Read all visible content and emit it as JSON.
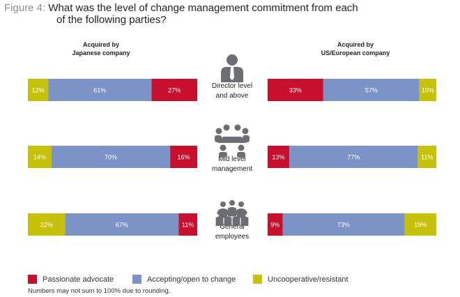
{
  "figure": {
    "label": "Figure 4:",
    "question_line1": "What was the level of change management commitment from each",
    "question_line2": "of the following parties?"
  },
  "columns": {
    "left": {
      "line1": "Acquired by",
      "line2": "Japanese company"
    },
    "right": {
      "line1": "Acquired by",
      "line2": "US/European company"
    }
  },
  "colors": {
    "passionate": "#c8102e",
    "accepting": "#7b93c6",
    "uncooperative": "#c6c20b"
  },
  "chart_data": {
    "type": "bar",
    "stacked": true,
    "orientation": "horizontal",
    "unit": "%",
    "groups": [
      {
        "label_lines": [
          "Director level",
          "and above"
        ],
        "icon": "single-person-icon",
        "japanese": {
          "uncooperative": 12,
          "accepting": 61,
          "passionate": 27
        },
        "us_european": {
          "passionate": 33,
          "accepting": 57,
          "uncooperative": 10
        }
      },
      {
        "label_lines": [
          "Mid level",
          "management"
        ],
        "icon": "meeting-table-icon",
        "japanese": {
          "uncooperative": 14,
          "accepting": 70,
          "passionate": 16
        },
        "us_european": {
          "passionate": 13,
          "accepting": 77,
          "uncooperative": 11
        }
      },
      {
        "label_lines": [
          "General",
          "employees"
        ],
        "icon": "crowd-icon",
        "japanese": {
          "uncooperative": 22,
          "accepting": 67,
          "passionate": 11
        },
        "us_european": {
          "passionate": 9,
          "accepting": 73,
          "uncooperative": 19
        }
      }
    ],
    "legend": [
      {
        "key": "passionate",
        "label": "Passionate advocate"
      },
      {
        "key": "accepting",
        "label": "Accepting/open to change"
      },
      {
        "key": "uncooperative",
        "label": "Uncooperative/resistant"
      }
    ]
  },
  "note": "Numbers may not sum to 100% due to rounding."
}
